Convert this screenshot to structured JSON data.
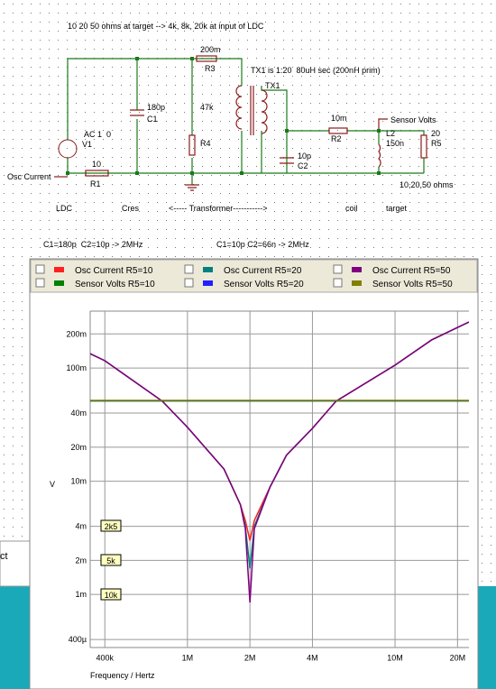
{
  "schematic": {
    "header": "10 20 50 ohms at target --> 4k, 8k, 20k at input of LDC",
    "tx_note": "TX1 is 1:20  80uH sec (200nH prim)",
    "target_note": "10,20,50 ohms",
    "labels": [
      "AC 1  0",
      "V1",
      "Osc Current",
      "10",
      "R1",
      "180p",
      "C1",
      "200m",
      "R3",
      "47k",
      "R4",
      "TX1",
      "10m",
      "R2",
      "Sensor Volts",
      "L2",
      "150n",
      "20",
      "R5",
      "10p",
      "C2"
    ],
    "blocks": [
      "LDC",
      "Cres",
      "<----- Transformer----------->",
      "coil",
      "target"
    ],
    "equations": [
      "C1=180p  C2=10p -> 2MHz",
      "C1=10p C2=66n -> 2MHz"
    ],
    "background_text": "ct"
  },
  "chart_data": {
    "type": "line",
    "x_label": "Frequency / Hertz",
    "y_label": "V",
    "xlog": true,
    "ylog": true,
    "grid": true,
    "xlim": [
      340000,
      22700000
    ],
    "ylim": [
      0.00034,
      0.318
    ],
    "xticks": [
      {
        "value": 400000,
        "label": "400k"
      },
      {
        "value": 1000000,
        "label": "1M"
      },
      {
        "value": 2000000,
        "label": "2M"
      },
      {
        "value": 4000000,
        "label": "4M"
      },
      {
        "value": 10000000,
        "label": "10M"
      },
      {
        "value": 20000000,
        "label": "20M"
      }
    ],
    "yticks": [
      {
        "value": 0.2,
        "label": "200m"
      },
      {
        "value": 0.1,
        "label": "100m"
      },
      {
        "value": 0.04,
        "label": "40m"
      },
      {
        "value": 0.02,
        "label": "20m"
      },
      {
        "value": 0.01,
        "label": "10m"
      },
      {
        "value": 0.004,
        "label": "4m"
      },
      {
        "value": 0.002,
        "label": "2m"
      },
      {
        "value": 0.001,
        "label": "1m"
      },
      {
        "value": 0.0004,
        "label": "400µ"
      }
    ],
    "x": [
      340000,
      400000,
      756000,
      1000000,
      1500000,
      1800000,
      1900000,
      2000000,
      2100000,
      2500000,
      3000000,
      4000000,
      5200000,
      10000000,
      15000000,
      22700000
    ],
    "series": [
      {
        "name": "Osc Current R5=10",
        "color": "#ff2020",
        "values": [
          0.134,
          0.116,
          0.051,
          0.03,
          0.0128,
          0.0062,
          0.0045,
          0.003,
          0.0045,
          0.0089,
          0.017,
          0.0293,
          0.051,
          0.106,
          0.177,
          0.255
        ]
      },
      {
        "name": "Sensor Volts R5=10",
        "color": "#008000",
        "values": [
          0.0512,
          0.0512,
          0.0512,
          0.0512,
          0.0512,
          0.0512,
          0.0512,
          0.0512,
          0.0512,
          0.0512,
          0.0512,
          0.0512,
          0.0512,
          0.0512,
          0.0512,
          0.0512
        ]
      },
      {
        "name": "Osc Current R5=20",
        "color": "#008080",
        "values": [
          0.134,
          0.116,
          0.051,
          0.03,
          0.0128,
          0.0062,
          0.004,
          0.0017,
          0.004,
          0.0089,
          0.017,
          0.0293,
          0.051,
          0.106,
          0.177,
          0.255
        ]
      },
      {
        "name": "Sensor Volts R5=20",
        "color": "#2020ff",
        "values": [
          0.0515,
          0.0515,
          0.0515,
          0.0515,
          0.0515,
          0.0515,
          0.0515,
          0.0515,
          0.0515,
          0.0515,
          0.0515,
          0.0515,
          0.0515,
          0.0515,
          0.0515,
          0.0515
        ]
      },
      {
        "name": "Osc Current R5=50",
        "color": "#800080",
        "values": [
          0.134,
          0.116,
          0.051,
          0.03,
          0.0128,
          0.0062,
          0.0038,
          0.00085,
          0.0038,
          0.0089,
          0.017,
          0.0293,
          0.051,
          0.106,
          0.177,
          0.255
        ]
      },
      {
        "name": "Sensor Volts R5=50",
        "color": "#808000",
        "values": [
          0.0518,
          0.0518,
          0.0518,
          0.0518,
          0.0518,
          0.0518,
          0.0518,
          0.0518,
          0.0518,
          0.0518,
          0.0518,
          0.0518,
          0.0518,
          0.0518,
          0.0518,
          0.0518
        ]
      }
    ],
    "annotations": [
      "2k5",
      "5k",
      "10k"
    ]
  }
}
